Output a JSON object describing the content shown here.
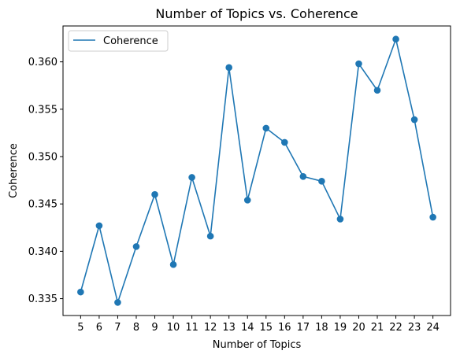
{
  "chart_data": {
    "type": "line",
    "title": "Number of Topics vs. Coherence",
    "xlabel": "Number of Topics",
    "ylabel": "Coherence",
    "x": [
      5,
      6,
      7,
      8,
      9,
      10,
      11,
      12,
      13,
      14,
      15,
      16,
      17,
      18,
      19,
      20,
      21,
      22,
      23,
      24
    ],
    "series": [
      {
        "name": "Coherence",
        "color": "#1f77b4",
        "markers": true,
        "values": [
          0.3357,
          0.3427,
          0.3346,
          0.3405,
          0.346,
          0.3386,
          0.3478,
          0.3416,
          0.3594,
          0.3454,
          0.353,
          0.3515,
          0.3479,
          0.3474,
          0.3434,
          0.3598,
          0.357,
          0.3624,
          0.3539,
          0.3436
        ]
      }
    ],
    "xlim": [
      4.05,
      24.95
    ],
    "ylim": [
      0.33322,
      0.36379
    ],
    "yticks": [
      0.335,
      0.34,
      0.345,
      0.35,
      0.355,
      0.36
    ],
    "ytick_labels": [
      "0.335",
      "0.340",
      "0.345",
      "0.350",
      "0.355",
      "0.360"
    ],
    "grid": false,
    "legend": "top-left"
  }
}
